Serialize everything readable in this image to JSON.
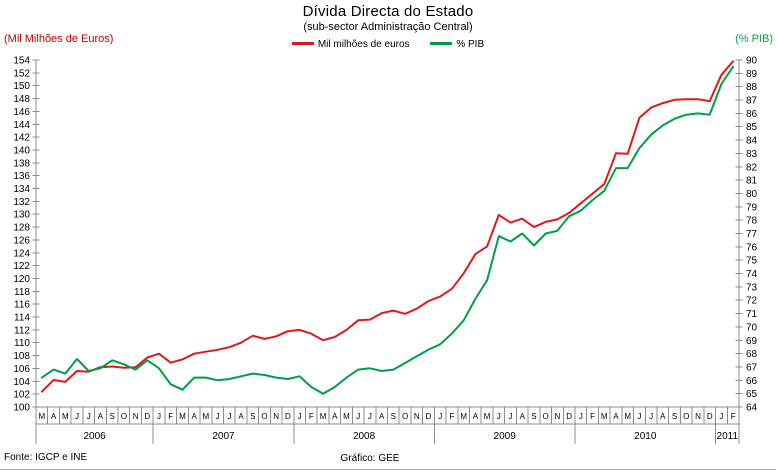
{
  "title": "Dívida Directa do Estado",
  "subtitle": "(sub-sector Administração Central)",
  "legend": [
    {
      "label": "Mil milhões de euros",
      "color": "#dc1a1a"
    },
    {
      "label": "% PIB",
      "color": "#009e49"
    }
  ],
  "left_axis": {
    "unit": "(Mil Milhões de Euros)",
    "min": 100,
    "max": 154,
    "step": 2,
    "color": "#c00000"
  },
  "right_axis": {
    "unit": "(% PIB)",
    "min": 64,
    "max": 90,
    "step": 1,
    "color": "#009e49"
  },
  "x_axis": {
    "month_letters": [
      "M",
      "A",
      "M",
      "J",
      "J",
      "A",
      "S",
      "O",
      "N",
      "D",
      "J",
      "F",
      "M",
      "A",
      "M",
      "J",
      "J",
      "A",
      "S",
      "O",
      "N",
      "D",
      "J",
      "F",
      "M",
      "A",
      "M",
      "J",
      "J",
      "A",
      "S",
      "O",
      "N",
      "D",
      "J",
      "F",
      "M",
      "A",
      "M",
      "J",
      "J",
      "A",
      "S",
      "O",
      "N",
      "D",
      "J",
      "F",
      "M",
      "A",
      "M",
      "J",
      "J",
      "A",
      "S",
      "O",
      "N",
      "D",
      "J",
      "F"
    ],
    "year_groups": [
      {
        "label": "2006",
        "months": 10
      },
      {
        "label": "2007",
        "months": 12
      },
      {
        "label": "2008",
        "months": 12
      },
      {
        "label": "2009",
        "months": 12
      },
      {
        "label": "2010",
        "months": 12
      },
      {
        "label": "2011",
        "months": 2
      }
    ]
  },
  "footer": {
    "source": "Fonte: IGCP e INE",
    "credit": "Gráfico: GEE"
  },
  "chart_data": {
    "type": "line",
    "categories": [
      "Mar-06",
      "Abr-06",
      "Mai-06",
      "Jun-06",
      "Jul-06",
      "Ago-06",
      "Set-06",
      "Out-06",
      "Nov-06",
      "Dez-06",
      "Jan-07",
      "Fev-07",
      "Mar-07",
      "Abr-07",
      "Mai-07",
      "Jun-07",
      "Jul-07",
      "Ago-07",
      "Set-07",
      "Out-07",
      "Nov-07",
      "Dez-07",
      "Jan-08",
      "Fev-08",
      "Mar-08",
      "Abr-08",
      "Mai-08",
      "Jun-08",
      "Jul-08",
      "Ago-08",
      "Set-08",
      "Out-08",
      "Nov-08",
      "Dez-08",
      "Jan-09",
      "Fev-09",
      "Mar-09",
      "Abr-09",
      "Mai-09",
      "Jun-09",
      "Jul-09",
      "Ago-09",
      "Set-09",
      "Out-09",
      "Nov-09",
      "Dez-09",
      "Jan-10",
      "Fev-10",
      "Mar-10",
      "Abr-10",
      "Mai-10",
      "Jun-10",
      "Jul-10",
      "Ago-10",
      "Set-10",
      "Out-10",
      "Nov-10",
      "Dez-10",
      "Jan-11",
      "Fev-11"
    ],
    "series": [
      {
        "name": "Mil milhões de euros",
        "axis": "left",
        "color": "#dc1a1a",
        "values": [
          102.4,
          104.2,
          103.9,
          105.6,
          105.5,
          106.2,
          106.3,
          106.1,
          106.2,
          107.7,
          108.3,
          106.9,
          107.4,
          108.3,
          108.6,
          108.9,
          109.3,
          110.0,
          111.1,
          110.6,
          111.0,
          111.8,
          112.0,
          111.4,
          110.4,
          110.9,
          112.0,
          113.5,
          113.6,
          114.6,
          115.0,
          114.5,
          115.3,
          116.5,
          117.2,
          118.4,
          120.8,
          123.8,
          125.0,
          129.9,
          128.7,
          129.3,
          128.0,
          128.8,
          129.2,
          130.2,
          131.7,
          133.2,
          134.7,
          139.5,
          139.4,
          145.0,
          146.6,
          147.3,
          147.8,
          147.9,
          147.9,
          147.6,
          151.7,
          153.8
        ]
      },
      {
        "name": "% PIB",
        "axis": "right",
        "color": "#009e49",
        "values": [
          66.2,
          66.8,
          66.5,
          67.6,
          66.7,
          66.9,
          67.5,
          67.2,
          66.8,
          67.5,
          66.9,
          65.7,
          65.3,
          66.2,
          66.2,
          66.0,
          66.1,
          66.3,
          66.5,
          66.4,
          66.2,
          66.1,
          66.3,
          65.5,
          65.0,
          65.5,
          66.2,
          66.8,
          66.9,
          66.7,
          66.8,
          67.3,
          67.8,
          68.3,
          68.7,
          69.5,
          70.5,
          72.1,
          73.5,
          76.8,
          76.4,
          77.0,
          76.1,
          77.0,
          77.2,
          78.3,
          78.7,
          79.5,
          80.2,
          81.9,
          81.9,
          83.4,
          84.4,
          85.1,
          85.6,
          85.9,
          86.0,
          85.9,
          88.2,
          89.5
        ]
      }
    ],
    "title": "Dívida Directa do Estado",
    "subtitle": "(sub-sector Administração Central)",
    "xlabel": "",
    "ylabel_left": "(Mil Milhões de Euros)",
    "ylabel_right": "(% PIB)",
    "ylim_left": [
      100,
      154
    ],
    "ylim_right": [
      64,
      90
    ],
    "grid": false,
    "legend_position": "top"
  }
}
